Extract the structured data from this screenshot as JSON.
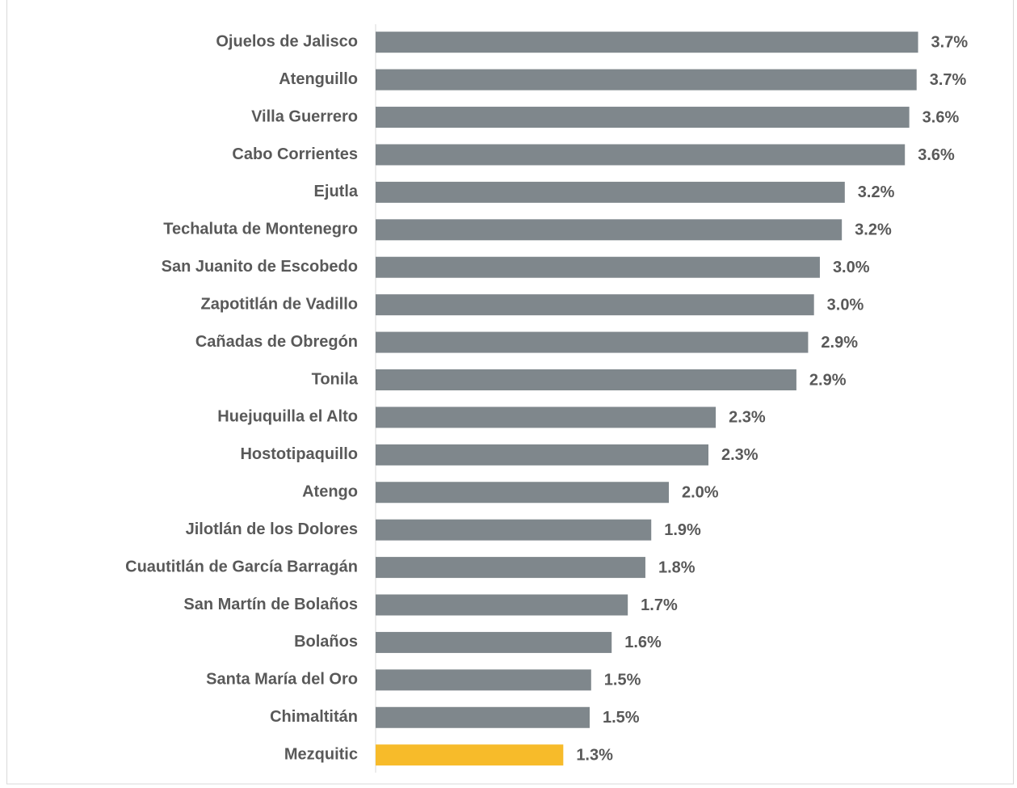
{
  "chart_data": {
    "type": "hbar",
    "categories": [
      "Ojuelos de Jalisco",
      "Atenguillo",
      "Villa Guerrero",
      "Cabo Corrientes",
      "Ejutla",
      "Techaluta de Montenegro",
      "San Juanito de Escobedo",
      "Zapotitlán de Vadillo",
      "Cañadas de Obregón",
      "Tonila",
      "Huejuquilla el Alto",
      "Hostotipaquillo",
      "Atengo",
      "Jilotlán de los Dolores",
      "Cuautitlán de García Barragán",
      "San Martín de Bolaños",
      "Bolaños",
      "Santa María del Oro",
      "Chimaltitán",
      "Mezquitic"
    ],
    "values": [
      3.7,
      3.69,
      3.64,
      3.61,
      3.2,
      3.18,
      3.03,
      2.99,
      2.95,
      2.87,
      2.32,
      2.27,
      2.0,
      1.88,
      1.84,
      1.72,
      1.61,
      1.47,
      1.46,
      1.28
    ],
    "value_labels": [
      "3.7%",
      "3.7%",
      "3.6%",
      "3.6%",
      "3.2%",
      "3.2%",
      "3.0%",
      "3.0%",
      "2.9%",
      "2.9%",
      "2.3%",
      "2.3%",
      "2.0%",
      "1.9%",
      "1.8%",
      "1.7%",
      "1.6%",
      "1.5%",
      "1.5%",
      "1.3%"
    ],
    "colors": [
      "#7f878c",
      "#7f878c",
      "#7f878c",
      "#7f878c",
      "#7f878c",
      "#7f878c",
      "#7f878c",
      "#7f878c",
      "#7f878c",
      "#7f878c",
      "#7f878c",
      "#7f878c",
      "#7f878c",
      "#7f878c",
      "#7f878c",
      "#7f878c",
      "#7f878c",
      "#7f878c",
      "#7f878c",
      "#f7bb2a"
    ],
    "xlim": [
      0,
      4
    ]
  }
}
